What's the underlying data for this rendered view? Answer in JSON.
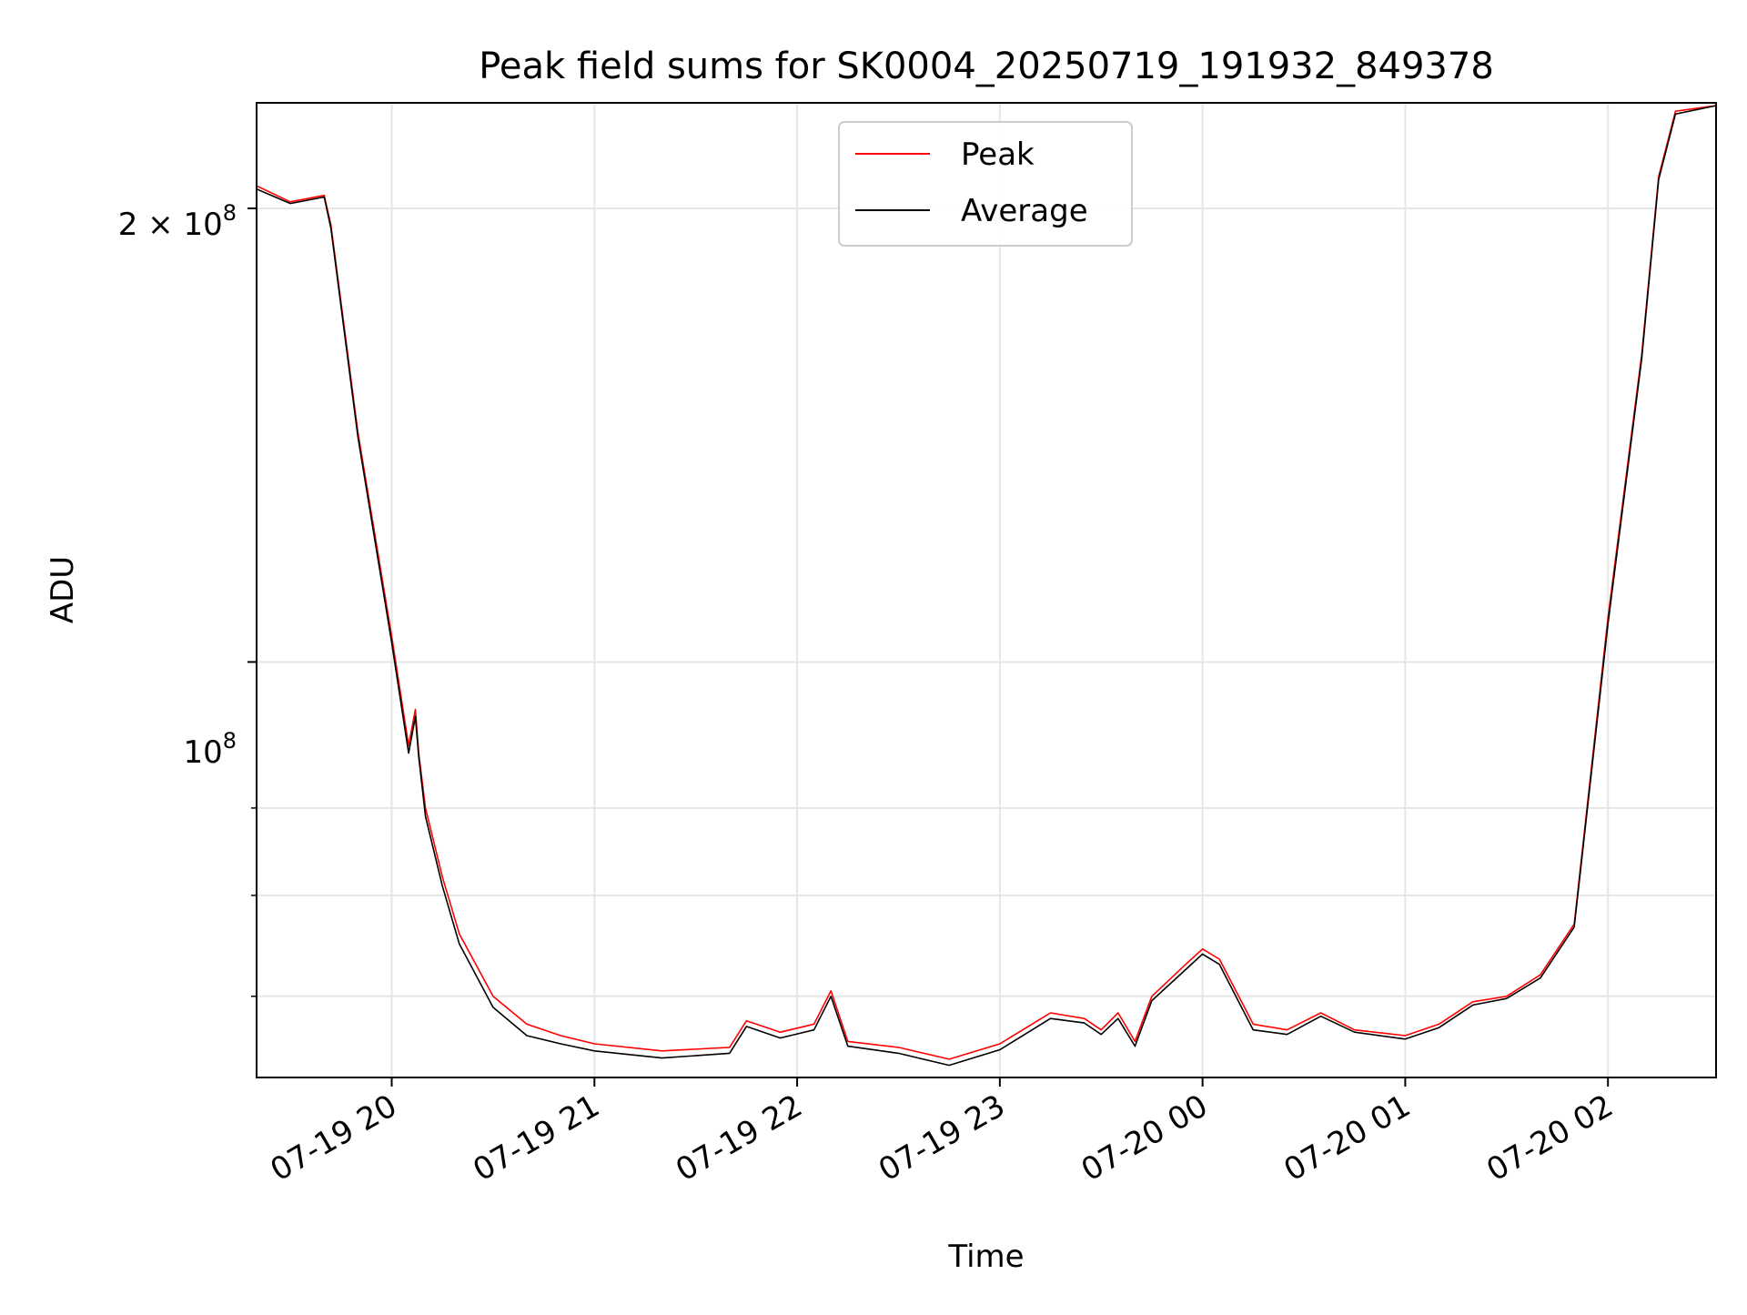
{
  "chart_data": {
    "type": "line",
    "title": "Peak field sums for SK0004_20250719_191932_849378",
    "xlabel": "Time",
    "ylabel": "ADU",
    "yscale": "log",
    "ylim": [
      53000000,
      235000000
    ],
    "xlim": [
      "07-19 19:20",
      "07-20 02:32"
    ],
    "x_ticks": [
      "07-19 20",
      "07-19 21",
      "07-19 22",
      "07-19 23",
      "07-20 00",
      "07-20 01",
      "07-20 02"
    ],
    "y_ticks": [
      {
        "value": 200000000,
        "label_mantissa": "2 × 10",
        "label_exp": "8"
      },
      {
        "value": 100000000,
        "label_mantissa": "10",
        "label_exp": "8"
      }
    ],
    "grid": true,
    "legend_position": "top-center",
    "series": [
      {
        "name": "Peak",
        "color": "#ff0000",
        "x": [
          "07-19 19:20",
          "07-19 19:30",
          "07-19 19:40",
          "07-19 19:42",
          "07-19 19:50",
          "07-19 20:00",
          "07-19 20:05",
          "07-19 20:07",
          "07-19 20:08",
          "07-19 20:10",
          "07-19 20:15",
          "07-19 20:20",
          "07-19 20:30",
          "07-19 20:40",
          "07-19 20:50",
          "07-19 21:00",
          "07-19 21:20",
          "07-19 21:40",
          "07-19 21:45",
          "07-19 21:55",
          "07-19 22:05",
          "07-19 22:10",
          "07-19 22:15",
          "07-19 22:30",
          "07-19 22:45",
          "07-19 23:00",
          "07-19 23:15",
          "07-19 23:25",
          "07-19 23:30",
          "07-19 23:35",
          "07-19 23:40",
          "07-19 23:45",
          "07-19 23:55",
          "07-20 00:00",
          "07-20 00:05",
          "07-20 00:15",
          "07-20 00:25",
          "07-20 00:35",
          "07-20 00:45",
          "07-20 01:00",
          "07-20 01:10",
          "07-20 01:20",
          "07-20 01:30",
          "07-20 01:40",
          "07-20 01:50",
          "07-20 02:00",
          "07-20 02:10",
          "07-20 02:15",
          "07-20 02:20",
          "07-20 02:32"
        ],
        "values": [
          207000000,
          202000000,
          204000000,
          195000000,
          142000000,
          104000000,
          88000000,
          93000000,
          87000000,
          80000000,
          72000000,
          66000000,
          60000000,
          57500000,
          56500000,
          55800000,
          55200000,
          55500000,
          57800000,
          56800000,
          57500000,
          60500000,
          56000000,
          55500000,
          54500000,
          55800000,
          58500000,
          58000000,
          57000000,
          58500000,
          56000000,
          60000000,
          63000000,
          64500000,
          63500000,
          57500000,
          57000000,
          58500000,
          57000000,
          56500000,
          57500000,
          59500000,
          60000000,
          62000000,
          67000000,
          107000000,
          160000000,
          210000000,
          232000000,
          234000000
        ]
      },
      {
        "name": "Average",
        "color": "#000000",
        "x": [
          "07-19 19:20",
          "07-19 19:30",
          "07-19 19:40",
          "07-19 19:42",
          "07-19 19:50",
          "07-19 20:00",
          "07-19 20:05",
          "07-19 20:07",
          "07-19 20:08",
          "07-19 20:10",
          "07-19 20:15",
          "07-19 20:20",
          "07-19 20:30",
          "07-19 20:40",
          "07-19 20:50",
          "07-19 21:00",
          "07-19 21:20",
          "07-19 21:40",
          "07-19 21:45",
          "07-19 21:55",
          "07-19 22:05",
          "07-19 22:10",
          "07-19 22:15",
          "07-19 22:30",
          "07-19 22:45",
          "07-19 23:00",
          "07-19 23:15",
          "07-19 23:25",
          "07-19 23:30",
          "07-19 23:35",
          "07-19 23:40",
          "07-19 23:45",
          "07-19 23:55",
          "07-20 00:00",
          "07-20 00:05",
          "07-20 00:15",
          "07-20 00:25",
          "07-20 00:35",
          "07-20 00:45",
          "07-20 01:00",
          "07-20 01:10",
          "07-20 01:20",
          "07-20 01:30",
          "07-20 01:40",
          "07-20 01:50",
          "07-20 02:00",
          "07-20 02:10",
          "07-20 02:15",
          "07-20 02:20",
          "07-20 02:32"
        ],
        "values": [
          206000000,
          201500000,
          203500000,
          194000000,
          141000000,
          103000000,
          87000000,
          92000000,
          86500000,
          79000000,
          71000000,
          65000000,
          59000000,
          56500000,
          55800000,
          55200000,
          54600000,
          55000000,
          57300000,
          56300000,
          57000000,
          60000000,
          55600000,
          55000000,
          54000000,
          55300000,
          58000000,
          57600000,
          56600000,
          58000000,
          55600000,
          59600000,
          62500000,
          64000000,
          63000000,
          57000000,
          56600000,
          58200000,
          56800000,
          56200000,
          57200000,
          59200000,
          59800000,
          61700000,
          66700000,
          106000000,
          159000000,
          209000000,
          231000000,
          234000000
        ]
      }
    ]
  }
}
